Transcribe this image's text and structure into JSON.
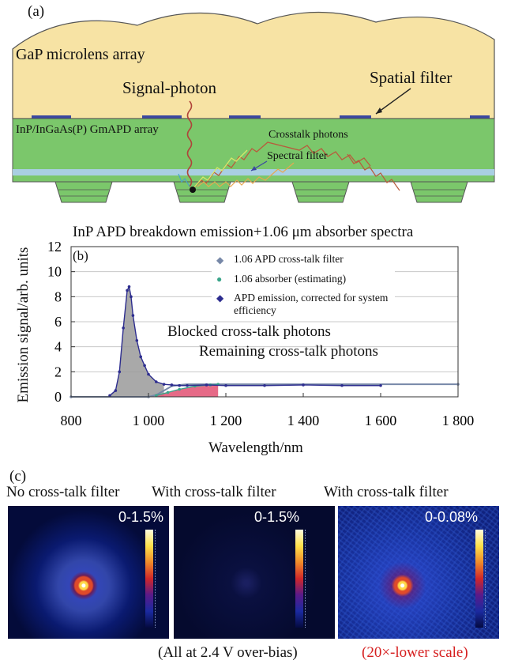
{
  "panel_a": {
    "label": "(a)",
    "microlens": "GaP microlens array",
    "signal_photon": "Signal-photon",
    "spatial_filter": "Spatial filter",
    "apd_array": "InP/InGaAs(P) GmAPD array",
    "crosstalk": "Crosstalk photons",
    "spectral_filter": "Spectral filter",
    "colors": {
      "microlens": "#f7e3a4",
      "apd": "#7bc76b",
      "stripe": "#a9cfe2",
      "outline": "#555555"
    }
  },
  "panel_b": {
    "label": "(b)",
    "annotation_blocked": "Blocked cross-talk photons",
    "annotation_remaining": "Remaining cross-talk photons"
  },
  "chart_data": {
    "type": "line",
    "title": "InP APD breakdown emission+1.06 μm absorber spectra",
    "xlabel": "Wavelength/nm",
    "ylabel": "Emission signal/arb. units",
    "xlim": [
      800,
      1800
    ],
    "ylim": [
      0,
      12
    ],
    "xticks": [
      800,
      1000,
      1200,
      1400,
      1600,
      1800
    ],
    "xtick_labels": [
      "800",
      "1 000",
      "1 200",
      "1 400",
      "1 600",
      "1 800"
    ],
    "yticks": [
      0,
      2,
      4,
      6,
      8,
      10,
      12
    ],
    "ytick_labels": [
      "0",
      "2",
      "4",
      "6",
      "8",
      "10",
      "12"
    ],
    "grid": true,
    "legend_position": "top-right",
    "series": [
      {
        "name": "1.06 APD cross-talk filter",
        "color": "#7788a8",
        "x": [
          800,
          1000,
          1020,
          1040,
          1060,
          1080,
          1100,
          1800
        ],
        "y": [
          0,
          0,
          0.15,
          0.5,
          0.85,
          0.95,
          1.0,
          1.0
        ]
      },
      {
        "name": "1.06 absorber (estimating)",
        "color": "#3aa58a",
        "x": [
          1020,
          1050,
          1080,
          1120,
          1160,
          1180
        ],
        "y": [
          0.1,
          0.35,
          0.6,
          0.85,
          0.95,
          1.0
        ]
      },
      {
        "name": "APD emission, corrected for system efficiency",
        "color": "#2d2d8f",
        "x": [
          900,
          915,
          925,
          935,
          945,
          950,
          955,
          960,
          970,
          980,
          990,
          1000,
          1020,
          1040,
          1060,
          1080,
          1100,
          1150,
          1200,
          1300,
          1400,
          1500,
          1600
        ],
        "y": [
          0.1,
          0.5,
          2.0,
          5.5,
          8.5,
          8.8,
          8.0,
          6.5,
          4.5,
          3.2,
          2.5,
          1.8,
          1.2,
          1.0,
          0.95,
          0.9,
          0.9,
          0.95,
          0.9,
          0.9,
          0.95,
          0.9,
          0.9
        ]
      }
    ]
  },
  "panel_c": {
    "label": "(c)",
    "titles": [
      "No cross-talk filter",
      "With cross-talk filter",
      "With cross-talk filter"
    ],
    "scales": [
      "0-1.5%",
      "0-1.5%",
      "0-0.08%"
    ],
    "footer": "(All at 2.4 V over-bias)",
    "footer_red": "(20×-lower scale)",
    "red_color": "#d62020"
  }
}
